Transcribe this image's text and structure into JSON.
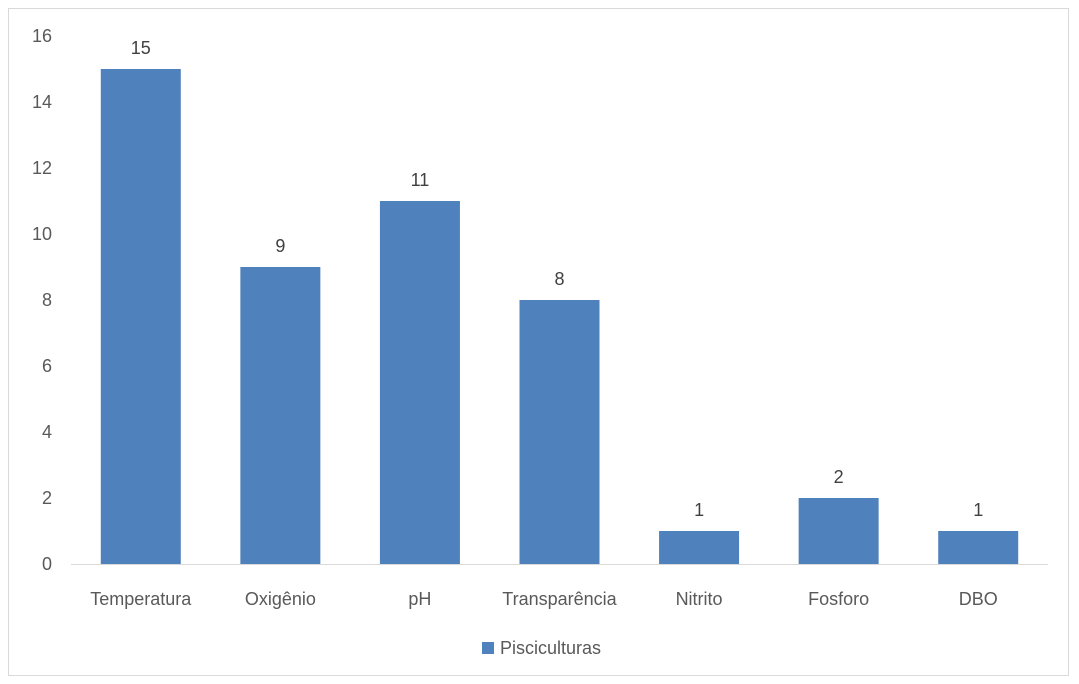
{
  "chart_data": {
    "type": "bar",
    "title": "",
    "xlabel": "",
    "ylabel": "",
    "categories": [
      "Temperatura",
      "Oxigênio",
      "pH",
      "Transparência",
      "Nitrito",
      "Fosforo",
      "DBO"
    ],
    "series": [
      {
        "name": "Pisciculturas",
        "values": [
          15,
          9,
          11,
          8,
          1,
          2,
          1
        ],
        "color": "#4f81bd"
      }
    ],
    "ylim": [
      0,
      16
    ],
    "yticks": [
      0,
      2,
      4,
      6,
      8,
      10,
      12,
      14,
      16
    ],
    "grid": false,
    "data_labels": true,
    "legend": "bottom"
  }
}
